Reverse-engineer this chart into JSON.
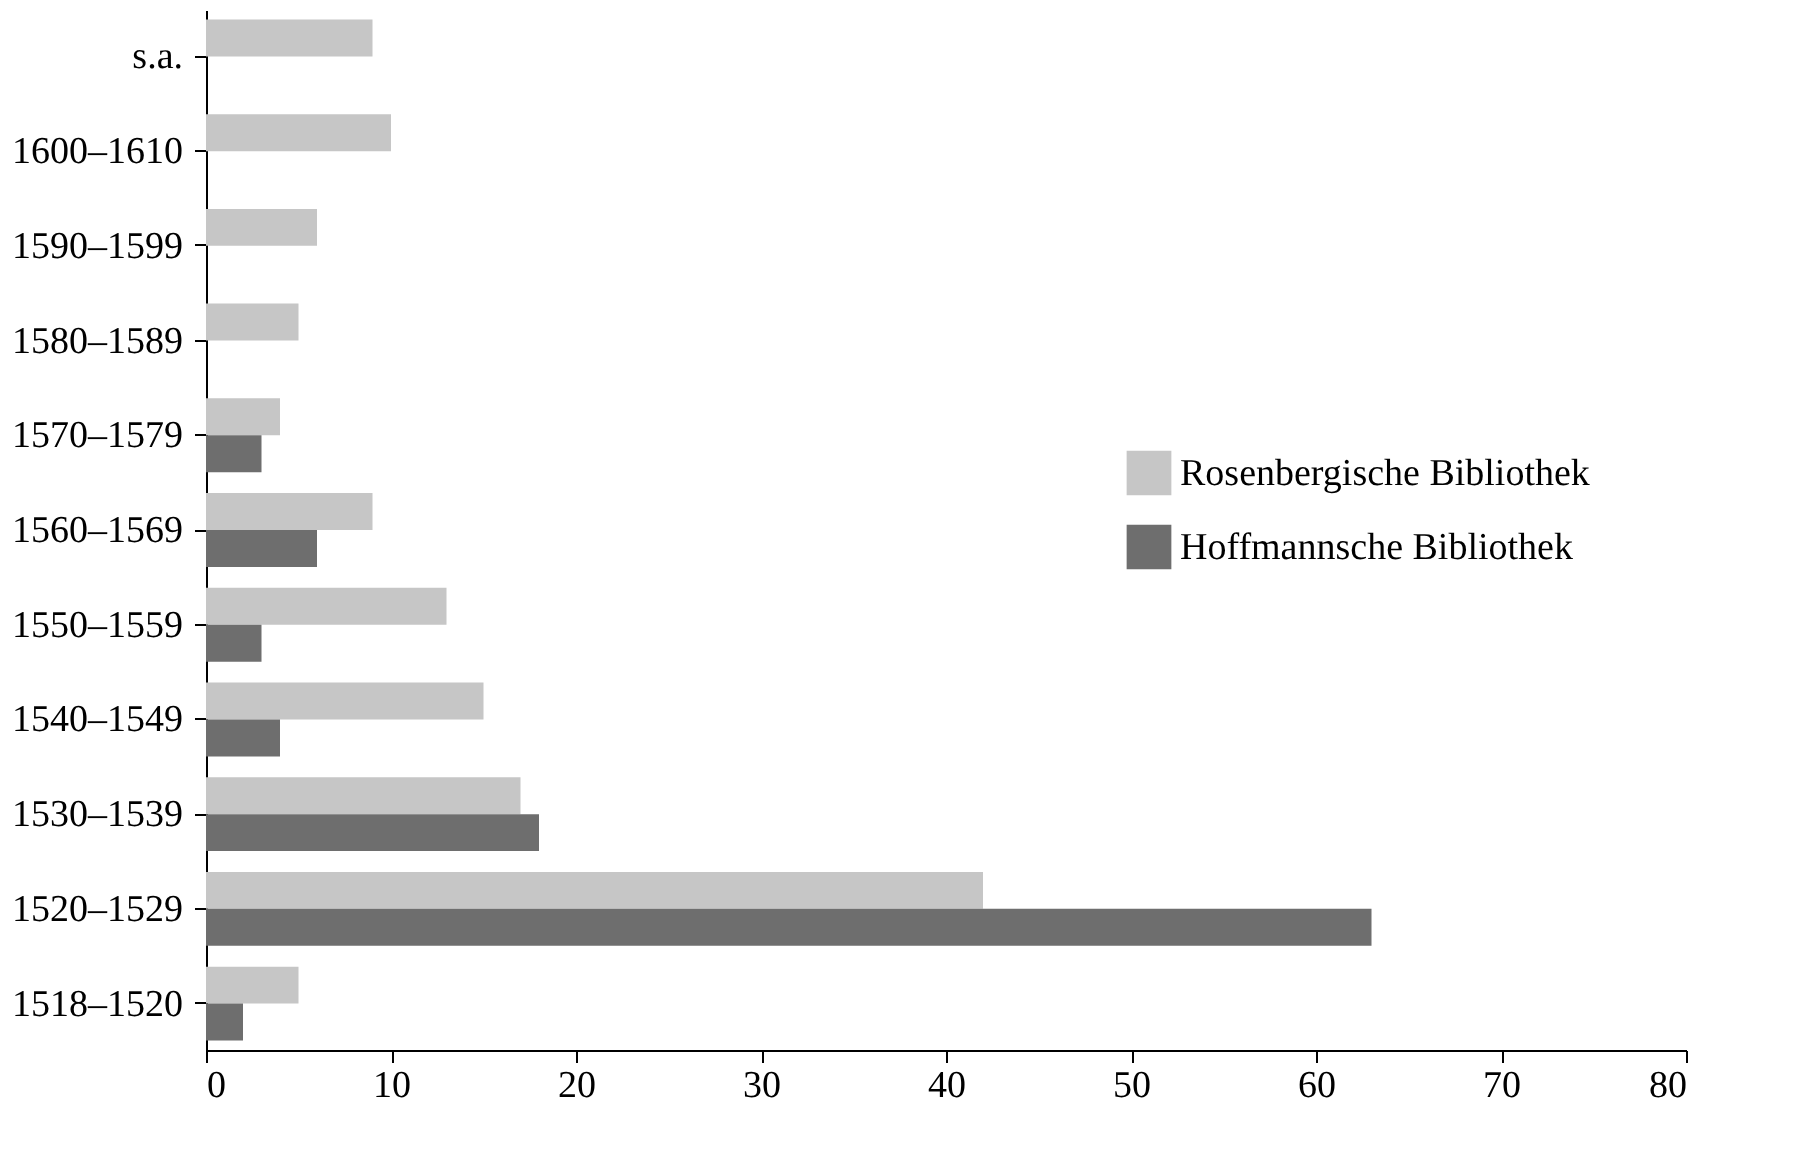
{
  "chart_data": {
    "type": "bar",
    "orientation": "horizontal",
    "categories": [
      "s.a.",
      "1600–1610",
      "1590–1599",
      "1580–1589",
      "1570–1579",
      "1560–1569",
      "1550–1559",
      "1540–1549",
      "1530–1539",
      "1520–1529",
      "1518–1520"
    ],
    "series": [
      {
        "name": "Rosenbergische Bibliothek",
        "color": "#c6c6c6",
        "values": [
          9,
          10,
          6,
          5,
          4,
          9,
          13,
          15,
          17,
          42,
          5
        ]
      },
      {
        "name": "Hoffmannsche Bibliothek",
        "color": "#6e6e6e",
        "values": [
          null,
          null,
          null,
          null,
          3,
          6,
          3,
          4,
          18,
          63,
          2
        ]
      }
    ],
    "xlim": [
      0,
      80
    ],
    "xticks": [
      0,
      10,
      20,
      30,
      40,
      50,
      60,
      70,
      80
    ],
    "grid": false,
    "legend": "right"
  }
}
